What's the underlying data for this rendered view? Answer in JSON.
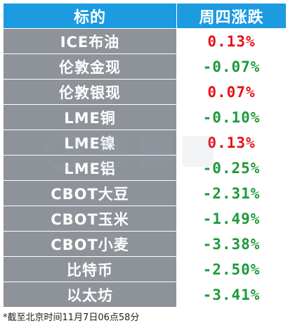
{
  "table": {
    "header": {
      "name": "标的",
      "change": "周四涨跌"
    },
    "rows": [
      {
        "name": "ICE布油",
        "change": "0.13%",
        "direction": "up"
      },
      {
        "name": "伦敦金现",
        "change": "-0.07%",
        "direction": "down"
      },
      {
        "name": "伦敦银现",
        "change": "0.07%",
        "direction": "up"
      },
      {
        "name": "LME铜",
        "change": "-0.10%",
        "direction": "down"
      },
      {
        "name": "LME镍",
        "change": "0.13%",
        "direction": "up"
      },
      {
        "name": "LME铝",
        "change": "-0.25%",
        "direction": "down"
      },
      {
        "name": "CBOT大豆",
        "change": "-2.31%",
        "direction": "down"
      },
      {
        "name": "CBOT玉米",
        "change": "-1.49%",
        "direction": "down"
      },
      {
        "name": "CBOT小麦",
        "change": "-3.38%",
        "direction": "down"
      },
      {
        "name": "比特币",
        "change": "-2.50%",
        "direction": "down"
      },
      {
        "name": "以太坊",
        "change": "-3.41%",
        "direction": "down"
      }
    ]
  },
  "footnote": "*截至北京时间11月7日06点58分",
  "colors": {
    "header_bg": "#1c9be0",
    "name_bg": "#8e939a",
    "up": "#e8101a",
    "down": "#1c9a3a"
  },
  "watermark_icon": "cailian-logo-watermark"
}
